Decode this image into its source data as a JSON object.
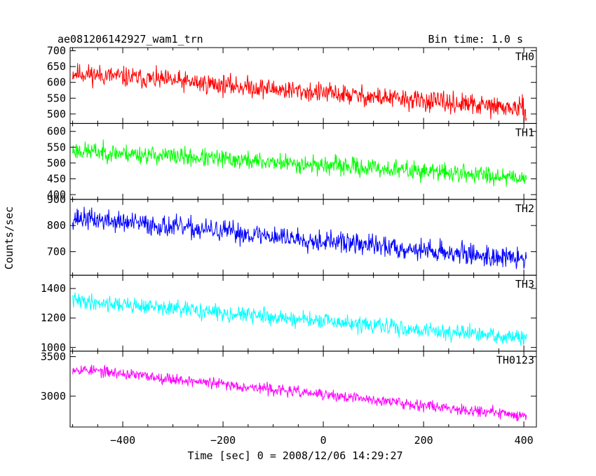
{
  "chart_data": {
    "type": "line",
    "title": "ae081206142927_wam1_trn",
    "bin_time_label": "Bin time: 1.0 s",
    "xlabel": "Time [sec] 0 = 2008/12/06 14:29:27",
    "ylabel": "Counts/sec",
    "xlim": [
      -505,
      425
    ],
    "x_ticks": [
      -400,
      -200,
      0,
      200,
      400
    ],
    "x_tick_labels": [
      "−400",
      "−200",
      "0",
      "200",
      "400"
    ],
    "x_range": [
      -500,
      405
    ],
    "grid": false,
    "panels": [
      {
        "name": "TH0",
        "color": "#ff0000",
        "ylim": [
          470,
          710
        ],
        "y_ticks": [
          500,
          550,
          600,
          650,
          700
        ],
        "y_tick_labels": [
          "500",
          "550",
          "600",
          "650",
          "700"
        ],
        "start_mean": 630,
        "end_mean": 515,
        "noise": 30,
        "seed": 11
      },
      {
        "name": "TH1",
        "color": "#00ff00",
        "ylim": [
          385,
          625
        ],
        "y_ticks": [
          400,
          450,
          500,
          550,
          600
        ],
        "y_tick_labels": [
          "400",
          "450",
          "500",
          "550",
          "600"
        ],
        "start_mean": 540,
        "end_mean": 455,
        "noise": 27,
        "seed": 23
      },
      {
        "name": "TH2",
        "color": "#0000ff",
        "ylim": [
          610,
          900
        ],
        "y_ticks": [
          700,
          800,
          900
        ],
        "y_tick_labels": [
          "700",
          "800",
          "900"
        ],
        "start_mean": 830,
        "end_mean": 670,
        "noise": 38,
        "seed": 37
      },
      {
        "name": "TH3",
        "color": "#00ffff",
        "ylim": [
          975,
          1490
        ],
        "y_ticks": [
          1000,
          1200,
          1400
        ],
        "y_tick_labels": [
          "1000",
          "1200",
          "1400"
        ],
        "start_mean": 1320,
        "end_mean": 1060,
        "noise": 50,
        "seed": 41
      },
      {
        "name": "TH0123",
        "color": "#ff00ff",
        "ylim": [
          2610,
          3570
        ],
        "y_ticks": [
          3000,
          3500
        ],
        "y_tick_labels": [
          "3000",
          "3500"
        ],
        "start_mean": 3350,
        "end_mean": 2750,
        "noise": 65,
        "seed": 53
      }
    ]
  }
}
